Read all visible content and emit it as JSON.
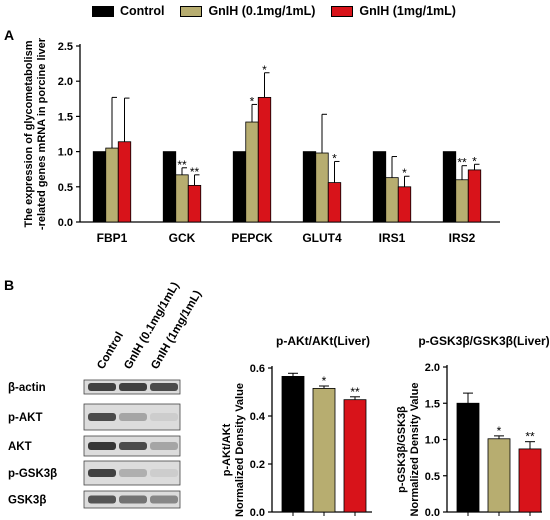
{
  "colors": {
    "control": "#000000",
    "low": "#b7ad70",
    "high": "#d8131a"
  },
  "legend": [
    {
      "label": "Control",
      "color": "#000000"
    },
    {
      "label": "GnIH (0.1mg/1mL)",
      "color": "#b7ad70"
    },
    {
      "label": "GnIH (1mg/1mL)",
      "color": "#d8131a"
    }
  ],
  "panel_a": {
    "label": "A"
  },
  "panel_b": {
    "label": "B"
  },
  "blot": {
    "lane_labels": [
      "Control",
      "GnIH (0.1mg/1mL)",
      "GnIH (1mg/1mL)"
    ],
    "bands": [
      {
        "name": "β-actin",
        "intensity": [
          0.85,
          0.85,
          0.8
        ]
      },
      {
        "name": "p-AKT",
        "intensity": [
          0.8,
          0.35,
          0.15
        ]
      },
      {
        "name": "AKT",
        "intensity": [
          0.9,
          0.8,
          0.35
        ]
      },
      {
        "name": "p-GSK3β",
        "intensity": [
          0.85,
          0.3,
          0.15
        ]
      },
      {
        "name": "GSK3β",
        "intensity": [
          0.75,
          0.6,
          0.5
        ]
      }
    ]
  },
  "chart_data": [
    {
      "type": "bar",
      "ylabel": "The expression of glycometabolism -related genes mRNA in porcine liver",
      "ylim": [
        0,
        2.5
      ],
      "yticks": [
        "0.0",
        "0.5",
        "1.0",
        "1.5",
        "2.0",
        "2.5"
      ],
      "categories": [
        "FBP1",
        "GCK",
        "PEPCK",
        "GLUT4",
        "IRS1",
        "IRS2"
      ],
      "series": [
        {
          "name": "Control",
          "values": [
            1.0,
            1.0,
            1.0,
            1.0,
            1.0,
            1.0
          ],
          "errors": [
            0,
            0,
            0,
            0,
            0,
            0
          ],
          "sig": [
            "",
            "",
            "",
            "",
            "",
            ""
          ]
        },
        {
          "name": "GnIH (0.1mg/1mL)",
          "values": [
            1.05,
            0.67,
            1.42,
            0.98,
            0.63,
            0.6
          ],
          "errors": [
            0.72,
            0.1,
            0.25,
            0.55,
            0.3,
            0.2
          ],
          "sig": [
            "",
            "**",
            "*",
            "",
            "",
            "**"
          ]
        },
        {
          "name": "GnIH (1mg/1mL)",
          "values": [
            1.14,
            0.52,
            1.77,
            0.56,
            0.5,
            0.74
          ],
          "errors": [
            0.62,
            0.15,
            0.35,
            0.3,
            0.15,
            0.08
          ],
          "sig": [
            "",
            "**",
            "*",
            "*",
            "*",
            "*"
          ]
        }
      ]
    },
    {
      "type": "bar",
      "title": "p-AKt/AKt(Liver)",
      "ylabel": "p-AKt/AKt Normalized Density Value",
      "ylim": [
        0,
        0.6
      ],
      "yticks": [
        "0.0",
        "0.2",
        "0.4",
        "0.6"
      ],
      "categories": [
        "Control",
        "GnIH (0.1mg/1mL)",
        "GnIH (1mg/1mL)"
      ],
      "values": [
        0.565,
        0.515,
        0.468
      ],
      "errors": [
        0.013,
        0.01,
        0.012
      ],
      "sig": [
        "",
        "*",
        "**"
      ]
    },
    {
      "type": "bar",
      "title": "p-GSK3β/GSK3β(Liver)",
      "ylabel": "p-GSK3β/GSK3β Normalized Density Value",
      "ylim": [
        0,
        2.0
      ],
      "yticks": [
        "0.0",
        "0.5",
        "1.0",
        "1.5",
        "2.0"
      ],
      "categories": [
        "Control",
        "GnIH (0.1mg/1mL)",
        "GnIH (1mg/1mL)"
      ],
      "values": [
        1.5,
        1.01,
        0.87
      ],
      "errors": [
        0.14,
        0.04,
        0.1
      ],
      "sig": [
        "",
        "*",
        "**"
      ]
    }
  ]
}
